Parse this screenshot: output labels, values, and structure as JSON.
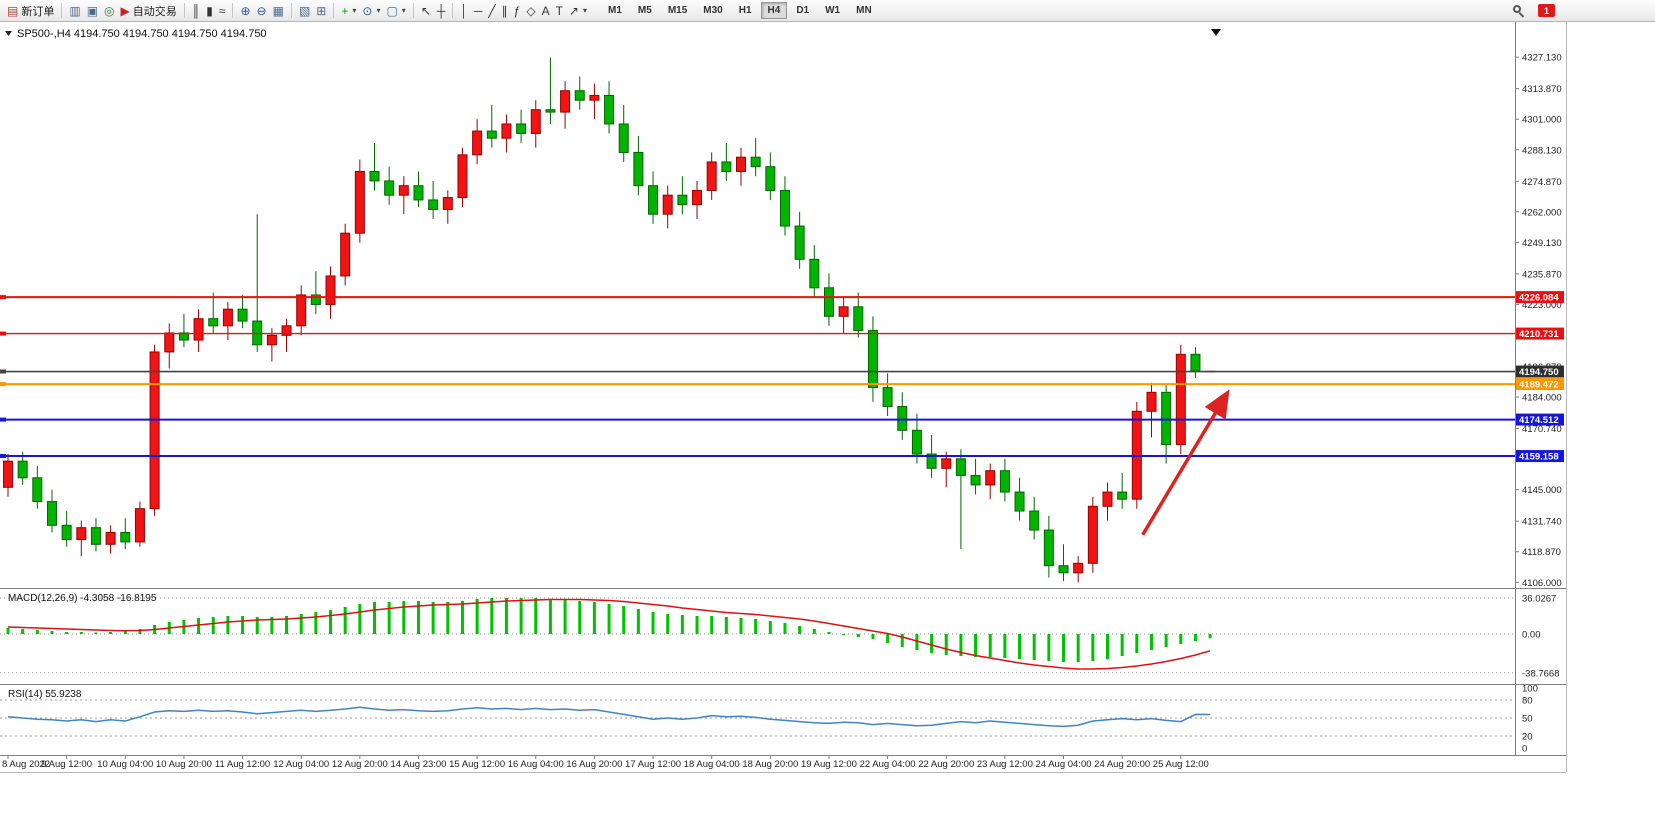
{
  "toolbar": {
    "dropdown_glyph": "▾",
    "notification_badge": "1",
    "timeframes": [
      "M1",
      "M5",
      "M15",
      "M30",
      "H1",
      "H4",
      "D1",
      "W1",
      "MN"
    ],
    "active_timeframe": "H4",
    "items": [
      {
        "kind": "labelbtn",
        "name": "new-order-button",
        "glyph": "▤",
        "color": "#b04030",
        "label": "新订单"
      },
      {
        "kind": "sep"
      },
      {
        "kind": "icon",
        "name": "charts-window-icon",
        "glyph": "▥",
        "color": "#4a6a8a"
      },
      {
        "kind": "icon",
        "name": "market-watch-icon",
        "glyph": "▣",
        "color": "#4a6a8a"
      },
      {
        "kind": "icon",
        "name": "navigator-icon",
        "glyph": "◎",
        "color": "#2a7a3a"
      },
      {
        "kind": "labelbtn",
        "name": "auto-trading-button",
        "glyph": "▶",
        "color": "#cc2222",
        "label": "自动交易"
      },
      {
        "kind": "sep"
      },
      {
        "kind": "icon",
        "name": "ohlc-bars-icon",
        "glyph": "║",
        "color": "#333333"
      },
      {
        "kind": "icon",
        "name": "candlestick-icon",
        "glyph": "▮",
        "color": "#333333"
      },
      {
        "kind": "icon",
        "name": "line-chart-icon",
        "glyph": "≈",
        "color": "#333333"
      },
      {
        "kind": "sep"
      },
      {
        "kind": "icon",
        "name": "zoom-in-icon",
        "glyph": "⊕",
        "color": "#2a5a9a"
      },
      {
        "kind": "icon",
        "name": "zoom-out-icon",
        "glyph": "⊖",
        "color": "#2a5a9a"
      },
      {
        "kind": "icon",
        "name": "auto-scroll-icon",
        "glyph": "▦",
        "color": "#4a6a8a"
      },
      {
        "kind": "sep"
      },
      {
        "kind": "icon",
        "name": "cascade-windows-icon",
        "glyph": "▧",
        "color": "#4a6a8a"
      },
      {
        "kind": "icon",
        "name": "tile-windows-icon",
        "glyph": "⊞",
        "color": "#4a6a8a"
      },
      {
        "kind": "sep"
      },
      {
        "kind": "dropdown",
        "name": "add-indicator-button",
        "glyph": "+",
        "color": "#1a9a1a"
      },
      {
        "kind": "dropdown",
        "name": "periods-button",
        "glyph": "⊙",
        "color": "#2a5a9a"
      },
      {
        "kind": "dropdown",
        "name": "templates-button",
        "glyph": "▢",
        "color": "#4a6a8a"
      },
      {
        "kind": "sep"
      },
      {
        "kind": "icon",
        "name": "cursor-icon",
        "glyph": "↖",
        "color": "#333333"
      },
      {
        "kind": "icon",
        "name": "crosshair-icon",
        "glyph": "┼",
        "color": "#333333"
      },
      {
        "kind": "sep"
      },
      {
        "kind": "icon",
        "name": "vertical-line-icon",
        "glyph": "│",
        "color": "#333333"
      },
      {
        "kind": "icon",
        "name": "horizontal-line-icon",
        "glyph": "─",
        "color": "#333333"
      },
      {
        "kind": "icon",
        "name": "trendline-icon",
        "glyph": "╱",
        "color": "#333333"
      },
      {
        "kind": "icon",
        "name": "equidistant-channel-icon",
        "glyph": "∥",
        "color": "#333333"
      },
      {
        "kind": "icon",
        "name": "fibonacci-icon",
        "glyph": "ƒ",
        "color": "#333333"
      },
      {
        "kind": "icon",
        "name": "shapes-icon",
        "glyph": "◇",
        "color": "#333333"
      },
      {
        "kind": "icon",
        "name": "text-icon",
        "glyph": "A",
        "color": "#333333"
      },
      {
        "kind": "icon",
        "name": "text-label-icon",
        "glyph": "T",
        "color": "#333333"
      },
      {
        "kind": "dropdown",
        "name": "arrows-button",
        "glyph": "↗",
        "color": "#333333"
      }
    ]
  },
  "chart": {
    "title": "SP500-,H4 4194.750 4194.750 4194.750 4194.750"
  },
  "chart_data": {
    "type": "candlestick",
    "symbol": "SP500-",
    "timeframe": "H4",
    "current_price": 4194.75,
    "colors": {
      "up": "#f01414",
      "up_border": "#990000",
      "down": "#00b400",
      "down_border": "#006600",
      "macd_hist": "#00c300",
      "macd_signal": "#e01010",
      "rsi_line": "#3d85c8",
      "arrow": "#dd2222"
    },
    "ohlc": [
      [
        4146,
        4160,
        4142,
        4157
      ],
      [
        4157,
        4161,
        4147,
        4150
      ],
      [
        4150,
        4155,
        4137,
        4140
      ],
      [
        4140,
        4145,
        4127,
        4130
      ],
      [
        4130,
        4136,
        4121,
        4124
      ],
      [
        4124,
        4132,
        4117,
        4129
      ],
      [
        4129,
        4133,
        4119,
        4122
      ],
      [
        4122,
        4130,
        4118,
        4127
      ],
      [
        4127,
        4133,
        4120,
        4123
      ],
      [
        4123,
        4140,
        4121,
        4137
      ],
      [
        4137,
        4206,
        4134,
        4203
      ],
      [
        4203,
        4215,
        4196,
        4211
      ],
      [
        4211,
        4219,
        4205,
        4208
      ],
      [
        4208,
        4221,
        4203,
        4217
      ],
      [
        4217,
        4228,
        4211,
        4214
      ],
      [
        4214,
        4224,
        4208,
        4221
      ],
      [
        4221,
        4227,
        4213,
        4216
      ],
      [
        4216,
        4261,
        4203,
        4206
      ],
      [
        4206,
        4213,
        4199,
        4210
      ],
      [
        4210,
        4217,
        4203,
        4214
      ],
      [
        4214,
        4231,
        4210,
        4227
      ],
      [
        4227,
        4237,
        4219,
        4223
      ],
      [
        4223,
        4239,
        4217,
        4235
      ],
      [
        4235,
        4257,
        4231,
        4253
      ],
      [
        4253,
        4284,
        4249,
        4279
      ],
      [
        4279,
        4291,
        4271,
        4275
      ],
      [
        4275,
        4281,
        4265,
        4269
      ],
      [
        4269,
        4277,
        4261,
        4273
      ],
      [
        4273,
        4279,
        4264,
        4267
      ],
      [
        4267,
        4275,
        4259,
        4263
      ],
      [
        4263,
        4271,
        4257,
        4268
      ],
      [
        4268,
        4289,
        4264,
        4286
      ],
      [
        4286,
        4301,
        4282,
        4296
      ],
      [
        4296,
        4307,
        4289,
        4293
      ],
      [
        4293,
        4303,
        4287,
        4299
      ],
      [
        4299,
        4305,
        4291,
        4295
      ],
      [
        4295,
        4309,
        4289,
        4305
      ],
      [
        4305,
        4327,
        4299,
        4304
      ],
      [
        4304,
        4317,
        4297,
        4313
      ],
      [
        4313,
        4319,
        4305,
        4309
      ],
      [
        4309,
        4316,
        4301,
        4311
      ],
      [
        4311,
        4317,
        4295,
        4299
      ],
      [
        4299,
        4307,
        4283,
        4287
      ],
      [
        4287,
        4294,
        4269,
        4273
      ],
      [
        4273,
        4279,
        4257,
        4261
      ],
      [
        4261,
        4273,
        4255,
        4269
      ],
      [
        4269,
        4277,
        4261,
        4265
      ],
      [
        4265,
        4275,
        4259,
        4271
      ],
      [
        4271,
        4287,
        4267,
        4283
      ],
      [
        4283,
        4291,
        4275,
        4279
      ],
      [
        4279,
        4289,
        4273,
        4285
      ],
      [
        4285,
        4293,
        4277,
        4281
      ],
      [
        4281,
        4287,
        4267,
        4271
      ],
      [
        4271,
        4277,
        4252,
        4256
      ],
      [
        4256,
        4262,
        4238,
        4242
      ],
      [
        4242,
        4248,
        4226,
        4230
      ],
      [
        4230,
        4236,
        4214,
        4218
      ],
      [
        4218,
        4226,
        4211,
        4222
      ],
      [
        4222,
        4228,
        4209,
        4212
      ],
      [
        4212,
        4218,
        4182,
        4188
      ],
      [
        4188,
        4194,
        4176,
        4180
      ],
      [
        4180,
        4186,
        4166,
        4170
      ],
      [
        4170,
        4177,
        4156,
        4160
      ],
      [
        4160,
        4168,
        4150,
        4154
      ],
      [
        4154,
        4161,
        4146,
        4158
      ],
      [
        4158,
        4162,
        4120,
        4151
      ],
      [
        4151,
        4158,
        4143,
        4147
      ],
      [
        4147,
        4156,
        4141,
        4153
      ],
      [
        4153,
        4158,
        4140,
        4144
      ],
      [
        4144,
        4150,
        4132,
        4136
      ],
      [
        4136,
        4142,
        4124,
        4128
      ],
      [
        4128,
        4134,
        4108,
        4113
      ],
      [
        4113,
        4122,
        4106.5,
        4110
      ],
      [
        4110,
        4117,
        4106,
        4114
      ],
      [
        4114,
        4142,
        4110,
        4138
      ],
      [
        4138,
        4148,
        4132,
        4144
      ],
      [
        4144,
        4152,
        4137,
        4141
      ],
      [
        4141,
        4182,
        4137,
        4178
      ],
      [
        4178,
        4190,
        4167,
        4186
      ],
      [
        4186,
        4189,
        4156,
        4164
      ],
      [
        4164,
        4206,
        4160,
        4202
      ],
      [
        4202,
        4205,
        4192,
        4195
      ],
      [
        4194.75,
        4194.75,
        4194.75,
        4194.75
      ]
    ],
    "time_labels": [
      "8 Aug 2022",
      "9 Aug 12:00",
      "10 Aug 04:00",
      "10 Aug 20:00",
      "11 Aug 12:00",
      "12 Aug 04:00",
      "12 Aug 20:00",
      "14 Aug 23:00",
      "15 Aug 12:00",
      "16 Aug 04:00",
      "16 Aug 20:00",
      "17 Aug 12:00",
      "18 Aug 04:00",
      "18 Aug 20:00",
      "19 Aug 12:00",
      "22 Aug 04:00",
      "22 Aug 20:00",
      "23 Aug 12:00",
      "24 Aug 04:00",
      "24 Aug 20:00",
      "25 Aug 12:00"
    ],
    "price_ticks": [
      "4327.130",
      "4313.870",
      "4301.000",
      "4288.130",
      "4274.870",
      "4262.000",
      "4249.130",
      "4235.870",
      "4223.000",
      "4196.870",
      "4184.000",
      "4170.740",
      "4145.000",
      "4131.740",
      "4118.870",
      "4106.000"
    ],
    "price_lines": [
      {
        "price": 4226.084,
        "label": "4226.084",
        "color": "#e81010",
        "badge_bg": "#e81010",
        "width": 2
      },
      {
        "price": 4210.731,
        "label": "4210.731",
        "color": "#e81010",
        "badge_bg": "#e81010",
        "width": 1.4
      },
      {
        "price": 4194.75,
        "label": "4194.750",
        "color": "#444444",
        "badge_bg": "#2f2f2f",
        "width": 1.6
      },
      {
        "price": 4189.472,
        "label": "4189.472",
        "color": "#ff9500",
        "badge_bg": "#ff9500",
        "width": 2
      },
      {
        "price": 4174.512,
        "label": "4174.512",
        "color": "#1616d6",
        "badge_bg": "#1616d6",
        "width": 2
      },
      {
        "price": 4159.158,
        "label": "4159.158",
        "color": "#1616d6",
        "badge_bg": "#1616d6",
        "width": 2
      }
    ],
    "ylim": [
      4103.6,
      4339.4
    ],
    "arrow": {
      "from_index": 77.4,
      "from_price": 4126,
      "to_index": 83.2,
      "to_price": 4186,
      "color": "#dd2222"
    },
    "macd": {
      "label": "MACD(12,26,9) -4.3058 -16.8195",
      "macd_value": -4.3058,
      "signal_value": -16.8195,
      "axis_labels": [
        "36.0267",
        "0.00",
        "-38.7668"
      ],
      "axis_values": [
        36.0267,
        0,
        -38.7668
      ],
      "histogram": [
        6,
        5,
        4,
        3,
        2,
        2,
        1.5,
        2,
        2.5,
        5,
        9,
        12,
        14,
        16,
        17,
        18,
        18,
        17,
        17,
        18,
        20,
        22,
        24,
        27,
        30,
        32,
        32,
        33,
        33,
        32,
        32,
        33,
        35,
        36,
        36,
        36,
        36,
        35,
        34,
        33,
        32,
        30,
        28,
        25,
        22,
        20,
        19,
        18,
        18,
        17,
        16,
        15,
        13,
        11,
        8,
        5,
        2,
        -1,
        -3,
        -5,
        -9,
        -13,
        -16,
        -19,
        -21,
        -22,
        -23,
        -23,
        -24,
        -25,
        -26,
        -27,
        -28,
        -28,
        -27,
        -25,
        -22,
        -19,
        -16,
        -13,
        -10,
        -7,
        -4.3
      ],
      "signal": [
        7,
        6.5,
        6,
        5.5,
        5,
        4.5,
        4,
        3.5,
        3.3,
        3.5,
        4.5,
        6,
        7.5,
        9,
        10.5,
        12,
        13,
        14,
        14.5,
        15,
        16,
        17,
        18.5,
        20,
        22,
        24,
        25.5,
        27,
        28,
        29,
        29.5,
        30,
        31,
        32,
        33,
        33.5,
        34,
        34.5,
        34.5,
        34.5,
        34,
        33.5,
        32.5,
        31,
        29.5,
        28,
        26,
        24.5,
        23,
        21.5,
        20.5,
        19.5,
        18,
        16.5,
        15,
        13,
        10.5,
        8,
        5.5,
        3,
        0.5,
        -3,
        -7,
        -11,
        -15,
        -18.5,
        -21.5,
        -24,
        -26.5,
        -29,
        -31,
        -32.5,
        -34,
        -35,
        -35,
        -34.5,
        -33.5,
        -32,
        -30,
        -27.5,
        -24.5,
        -21,
        -16.8
      ]
    },
    "rsi": {
      "label": "RSI(14) 55.9238",
      "value": 55.9238,
      "axis_labels": [
        "100",
        "80",
        "50",
        "20",
        "0"
      ],
      "axis_values": [
        100,
        80,
        50,
        20,
        0
      ],
      "levels": [
        80,
        50,
        20
      ],
      "values": [
        52,
        50,
        48,
        47,
        45,
        47,
        44,
        47,
        45,
        52,
        60,
        62,
        61,
        63,
        61,
        62,
        60,
        57,
        59,
        61,
        63,
        61,
        63,
        65,
        68,
        65,
        63,
        64,
        62,
        61,
        62,
        65,
        67,
        65,
        66,
        64,
        66,
        64,
        65,
        63,
        64,
        60,
        56,
        52,
        48,
        50,
        48,
        50,
        54,
        52,
        53,
        51,
        48,
        46,
        44,
        42,
        41,
        43,
        42,
        39,
        41,
        39,
        37,
        38,
        41,
        44,
        42,
        45,
        43,
        41,
        39,
        37,
        36,
        38,
        45,
        47,
        49,
        47,
        49,
        46,
        44,
        56,
        55.92
      ]
    }
  }
}
